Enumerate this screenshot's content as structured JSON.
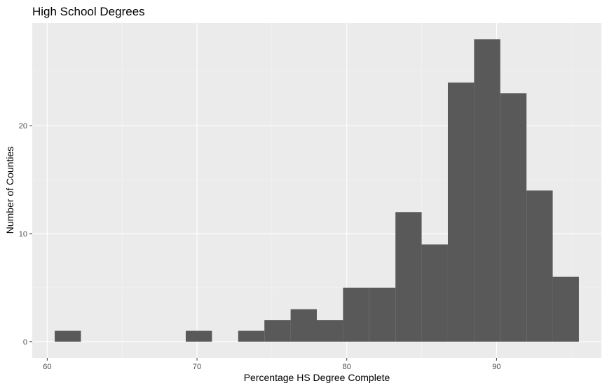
{
  "chart_data": {
    "type": "bar",
    "title": "High School Degrees",
    "xlabel": "Percentage HS Degree Complete",
    "ylabel": "Number of Counties",
    "xlim": [
      59,
      97
    ],
    "ylim": [
      -1.5,
      29.5
    ],
    "x_ticks": [
      60,
      70,
      80,
      90
    ],
    "y_ticks": [
      0,
      10,
      20
    ],
    "grid": true,
    "bin_width": 1.75,
    "bins": [
      {
        "x0": 60.5,
        "x1": 62.25,
        "count": 1
      },
      {
        "x0": 62.25,
        "x1": 64.0,
        "count": 0
      },
      {
        "x0": 64.0,
        "x1": 65.75,
        "count": 0
      },
      {
        "x0": 65.75,
        "x1": 67.5,
        "count": 0
      },
      {
        "x0": 67.5,
        "x1": 69.25,
        "count": 0
      },
      {
        "x0": 69.25,
        "x1": 71.0,
        "count": 1
      },
      {
        "x0": 71.0,
        "x1": 72.75,
        "count": 0
      },
      {
        "x0": 72.75,
        "x1": 74.5,
        "count": 1
      },
      {
        "x0": 74.5,
        "x1": 76.25,
        "count": 2
      },
      {
        "x0": 76.25,
        "x1": 78.0,
        "count": 3
      },
      {
        "x0": 78.0,
        "x1": 79.75,
        "count": 2
      },
      {
        "x0": 79.75,
        "x1": 81.5,
        "count": 5
      },
      {
        "x0": 81.5,
        "x1": 83.25,
        "count": 5
      },
      {
        "x0": 83.25,
        "x1": 85.0,
        "count": 12
      },
      {
        "x0": 85.0,
        "x1": 86.75,
        "count": 9
      },
      {
        "x0": 86.75,
        "x1": 88.5,
        "count": 24
      },
      {
        "x0": 88.5,
        "x1": 90.25,
        "count": 28
      },
      {
        "x0": 90.25,
        "x1": 92.0,
        "count": 23
      },
      {
        "x0": 92.0,
        "x1": 93.75,
        "count": 14
      },
      {
        "x0": 93.75,
        "x1": 95.5,
        "count": 6
      }
    ],
    "colors": {
      "bar": "#595959",
      "panel": "#ebebeb",
      "grid_major": "#ffffff",
      "grid_minor": "#f5f5f5",
      "tick": "#333333"
    }
  }
}
